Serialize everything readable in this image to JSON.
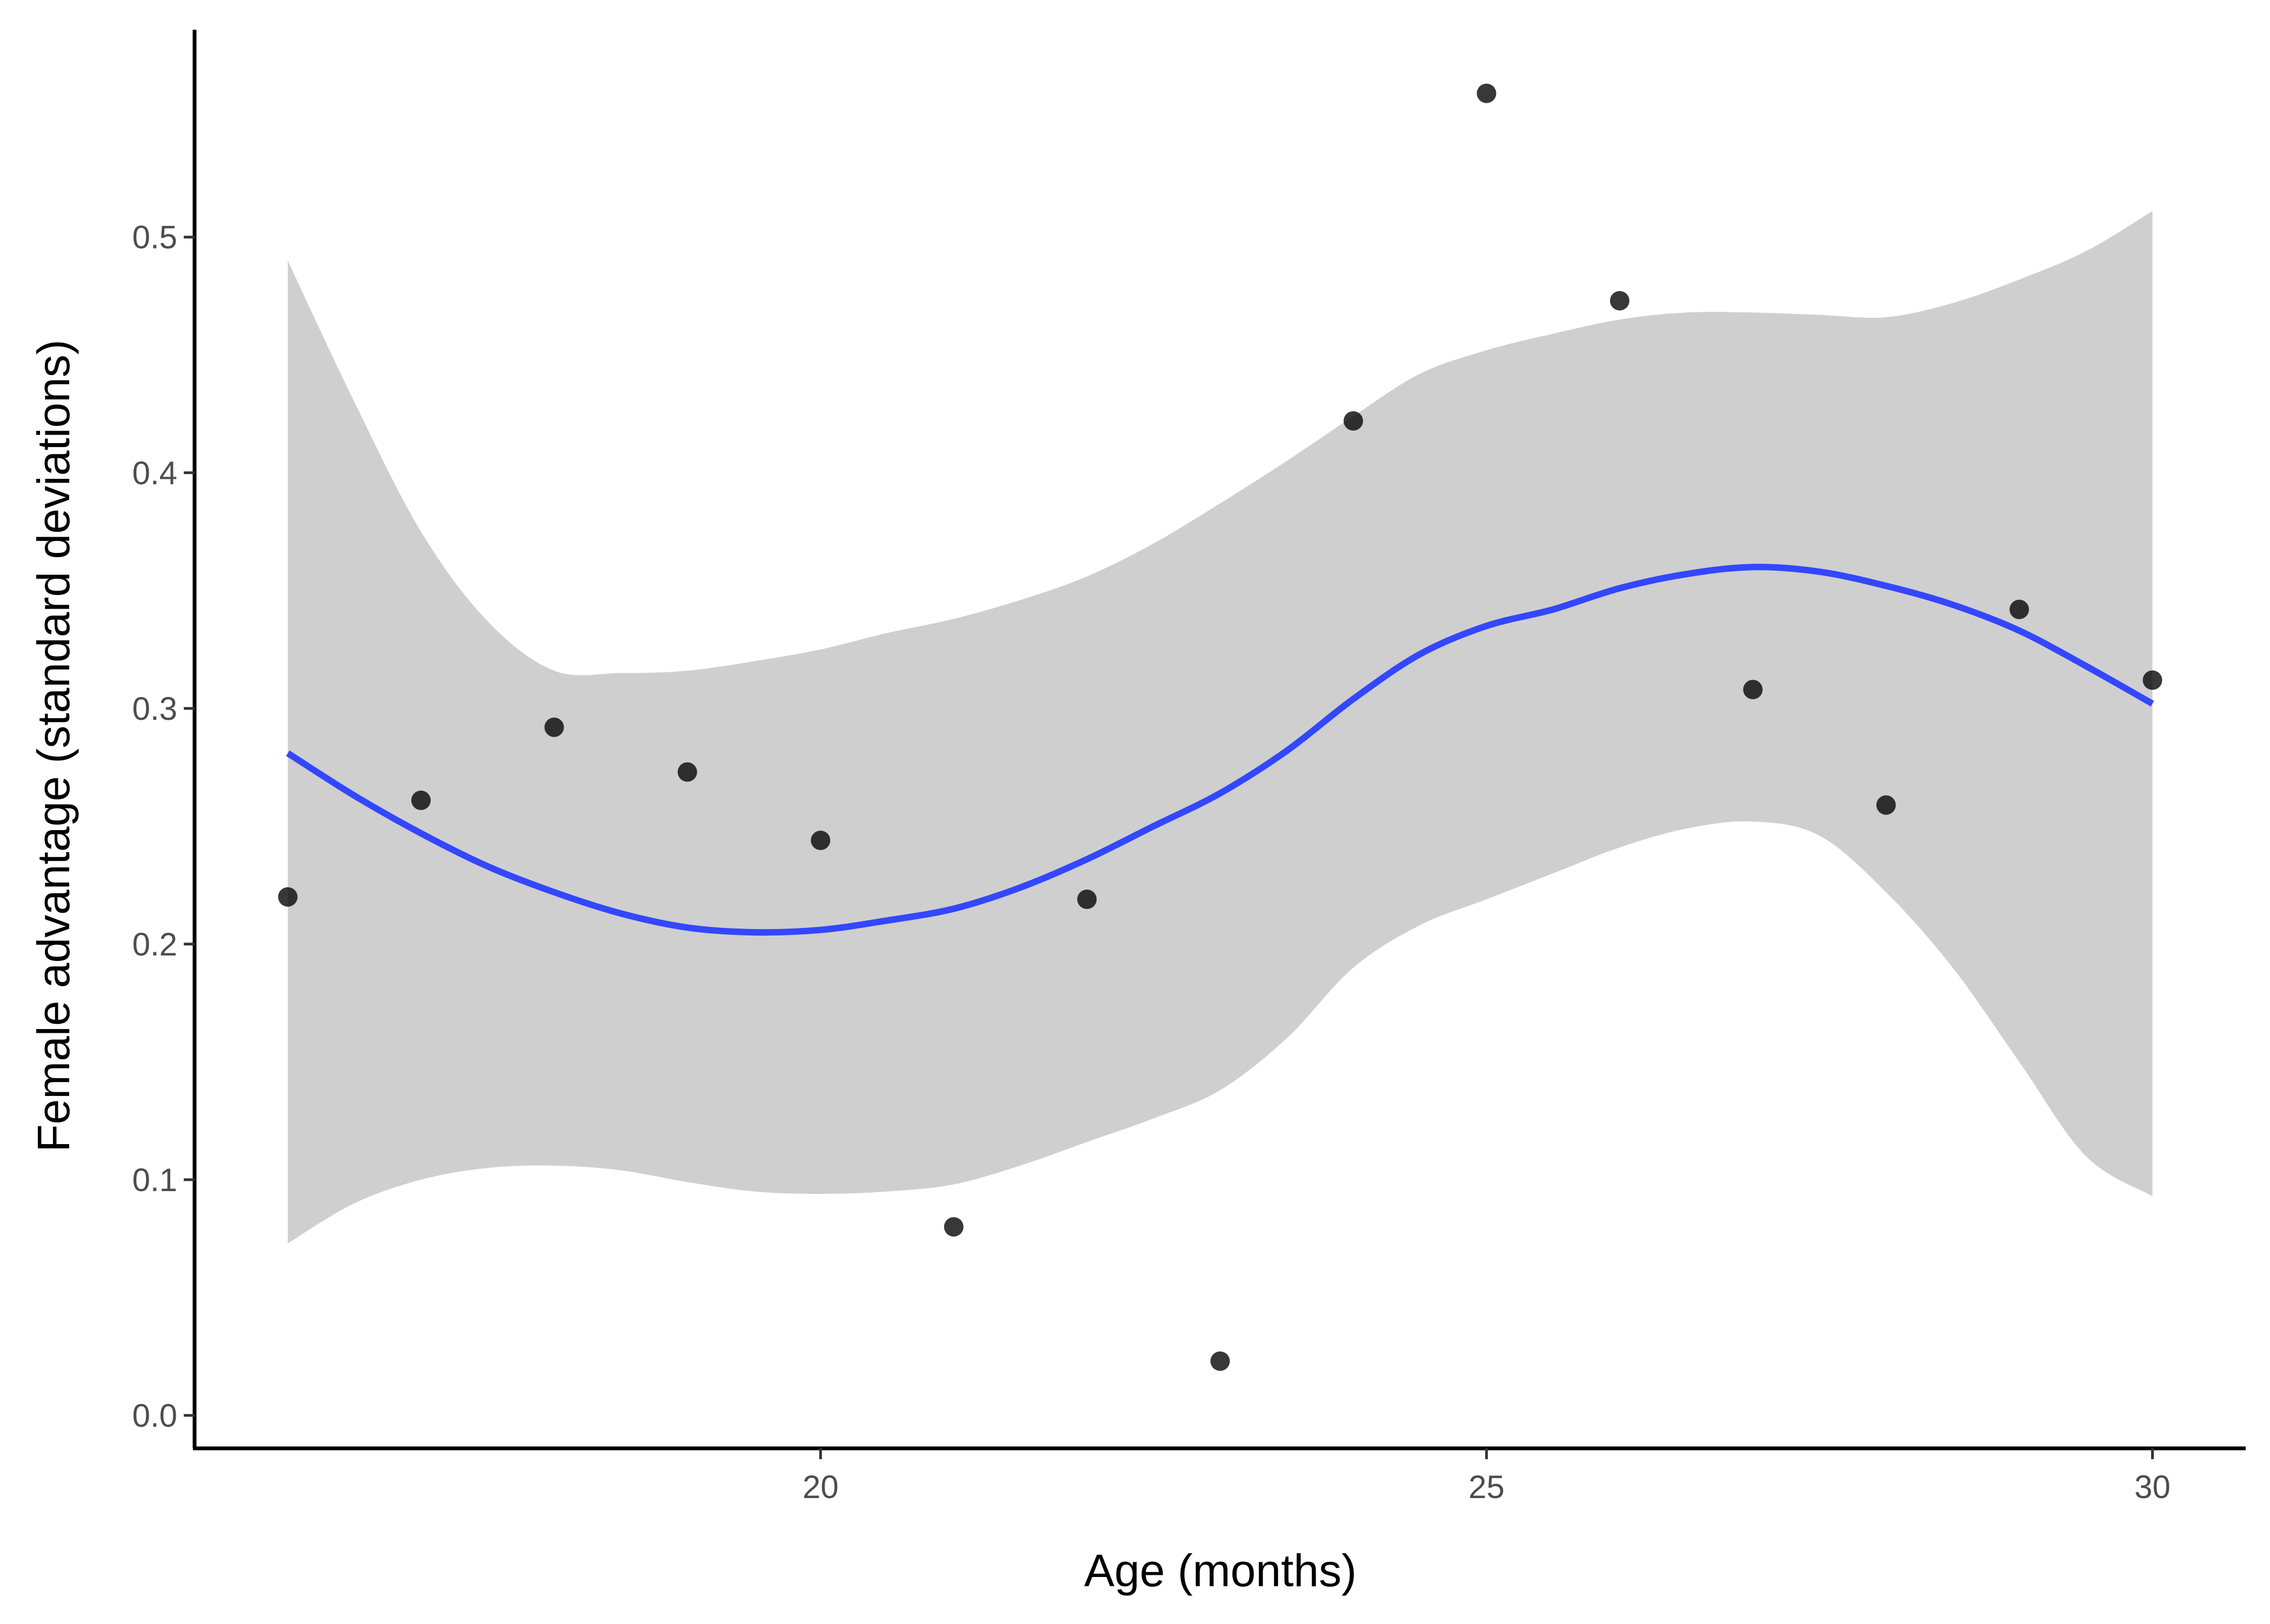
{
  "chart_data": {
    "type": "scatter",
    "title": "",
    "xlabel": "Age (months)",
    "ylabel": "Female advantage (standard deviations)",
    "xlim": [
      15.3,
      30.7
    ],
    "ylim": [
      -0.014,
      0.588
    ],
    "x_ticks": [
      20,
      25,
      30
    ],
    "x_tick_labels": [
      "20",
      "25",
      "30"
    ],
    "y_ticks": [
      0.0,
      0.1,
      0.2,
      0.3,
      0.4,
      0.5
    ],
    "y_tick_labels": [
      "0.0",
      "0.1",
      "0.2",
      "0.3",
      "0.4",
      "0.5"
    ],
    "grid": false,
    "legend": "none",
    "points": [
      {
        "x": 16,
        "y": 0.22
      },
      {
        "x": 17,
        "y": 0.261
      },
      {
        "x": 18,
        "y": 0.292
      },
      {
        "x": 19,
        "y": 0.273
      },
      {
        "x": 20,
        "y": 0.244
      },
      {
        "x": 21,
        "y": 0.08
      },
      {
        "x": 22,
        "y": 0.219
      },
      {
        "x": 23,
        "y": 0.023
      },
      {
        "x": 24,
        "y": 0.422
      },
      {
        "x": 25,
        "y": 0.561
      },
      {
        "x": 26,
        "y": 0.473
      },
      {
        "x": 27,
        "y": 0.308
      },
      {
        "x": 28,
        "y": 0.259
      },
      {
        "x": 29,
        "y": 0.342
      },
      {
        "x": 30,
        "y": 0.312
      }
    ],
    "smooth": {
      "x": [
        16,
        16.5,
        17,
        17.5,
        18,
        18.5,
        19,
        19.5,
        20,
        20.5,
        21,
        21.5,
        22,
        22.5,
        23,
        23.5,
        24,
        24.5,
        25,
        25.5,
        26,
        26.5,
        27,
        27.5,
        28,
        28.5,
        29,
        29.5,
        30
      ],
      "y": [
        0.281,
        0.263,
        0.247,
        0.233,
        0.222,
        0.213,
        0.207,
        0.205,
        0.206,
        0.21,
        0.215,
        0.224,
        0.236,
        0.25,
        0.264,
        0.282,
        0.304,
        0.323,
        0.335,
        0.342,
        0.351,
        0.357,
        0.36,
        0.358,
        0.352,
        0.344,
        0.333,
        0.318,
        0.302
      ],
      "lower": [
        0.073,
        0.09,
        0.1,
        0.105,
        0.106,
        0.104,
        0.099,
        0.095,
        0.094,
        0.095,
        0.098,
        0.106,
        0.116,
        0.126,
        0.138,
        0.16,
        0.19,
        0.208,
        0.219,
        0.23,
        0.241,
        0.249,
        0.252,
        0.246,
        0.222,
        0.19,
        0.15,
        0.11,
        0.093
      ],
      "upper": [
        0.49,
        0.43,
        0.375,
        0.337,
        0.316,
        0.315,
        0.316,
        0.32,
        0.325,
        0.332,
        0.338,
        0.346,
        0.356,
        0.37,
        0.387,
        0.405,
        0.424,
        0.442,
        0.452,
        0.459,
        0.465,
        0.468,
        0.468,
        0.467,
        0.466,
        0.472,
        0.482,
        0.494,
        0.511
      ]
    },
    "colors": {
      "points": "#000000",
      "line": "#3347ff",
      "ribbon": "#cfcfcf",
      "axis": "#000000",
      "tick_label": "#4d4d4d"
    }
  }
}
